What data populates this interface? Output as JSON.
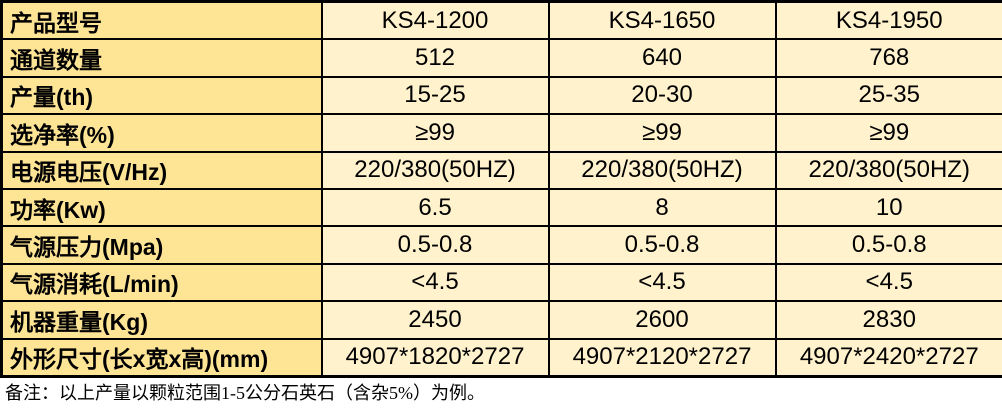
{
  "table": {
    "rows": [
      {
        "label": "产品型号",
        "values": [
          "KS4-1200",
          "KS4-1650",
          "KS4-1950"
        ]
      },
      {
        "label": "通道数量",
        "values": [
          "512",
          "640",
          "768"
        ]
      },
      {
        "label": "产量(th)",
        "values": [
          "15-25",
          "20-30",
          "25-35"
        ]
      },
      {
        "label": "选净率(%)",
        "values": [
          "≥99",
          "≥99",
          "≥99"
        ]
      },
      {
        "label": "电源电压(V/Hz)",
        "values": [
          "220/380(50HZ)",
          "220/380(50HZ)",
          "220/380(50HZ)"
        ]
      },
      {
        "label": "功率(Kw)",
        "values": [
          "6.5",
          "8",
          "10"
        ]
      },
      {
        "label": "气源压力(Mpa)",
        "values": [
          "0.5-0.8",
          "0.5-0.8",
          "0.5-0.8"
        ]
      },
      {
        "label": "气源消耗(L/min)",
        "values": [
          "<4.5",
          "<4.5",
          "<4.5"
        ]
      },
      {
        "label": "机器重量(Kg)",
        "values": [
          "2450",
          "2600",
          "2830"
        ]
      },
      {
        "label": "外形尺寸(长x宽x高)(mm)",
        "values": [
          "4907*1820*2727",
          "4907*2120*2727",
          "4907*2420*2727"
        ]
      }
    ]
  },
  "note": "备注：以上产量以颗粒范围1-5公分石英石（含杂5%）为例。",
  "colors": {
    "row_header_bg": "#fee495",
    "cell_bg": "#fff2cc",
    "border": "#000000"
  }
}
